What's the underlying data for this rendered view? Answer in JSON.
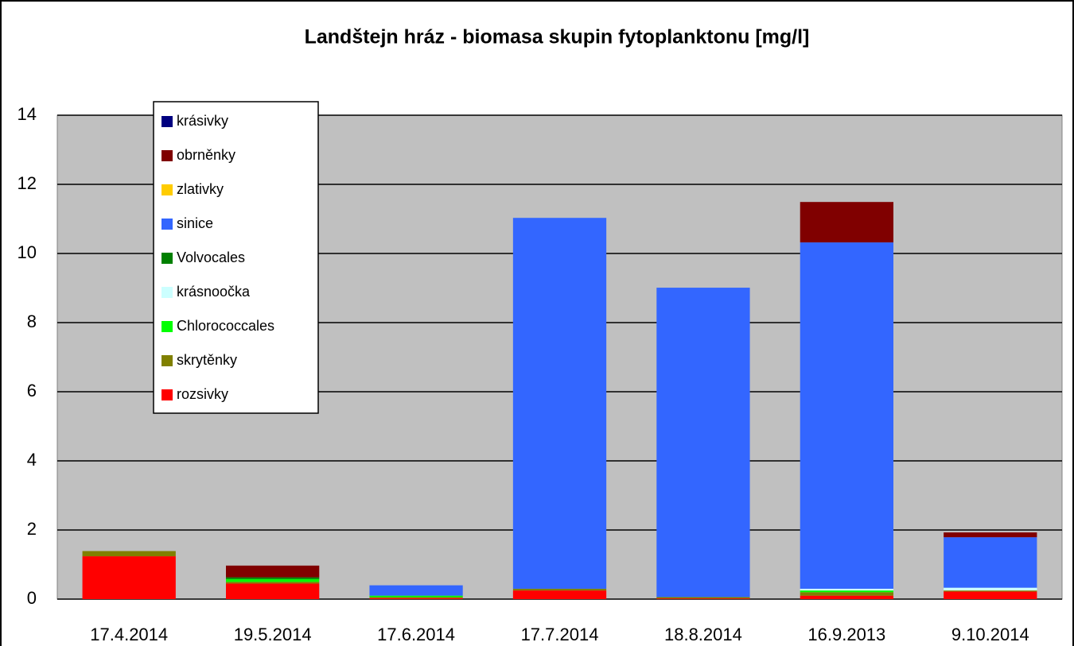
{
  "chart_data": {
    "type": "bar",
    "stacked": true,
    "title": "Landštejn hráz - biomasa skupin fytoplanktonu [mg/l]",
    "categories": [
      "17.4.2014",
      "19.5.2014",
      "17.6.2014",
      "17.7.2014",
      "18.8.2014",
      "16.9.2013",
      "9.10.2014"
    ],
    "series": [
      {
        "name": "rozsivky",
        "color": "#ff0000",
        "values": [
          1.24,
          0.45,
          0.03,
          0.25,
          0.02,
          0.1,
          0.22
        ]
      },
      {
        "name": "skrytěnky",
        "color": "#808000",
        "values": [
          0.15,
          0.05,
          0.03,
          0.05,
          0.04,
          0.1,
          0.03
        ]
      },
      {
        "name": "Chlorococcales",
        "color": "#00ff00",
        "values": [
          0,
          0.08,
          0.04,
          0,
          0,
          0.05,
          0
        ]
      },
      {
        "name": "krásnoočka",
        "color": "#ccffff",
        "values": [
          0,
          0,
          0,
          0,
          0,
          0.05,
          0.08
        ]
      },
      {
        "name": "Volvocales",
        "color": "#008000",
        "values": [
          0,
          0.05,
          0,
          0,
          0,
          0,
          0
        ]
      },
      {
        "name": "sinice",
        "color": "#3366ff",
        "values": [
          0,
          0,
          0.3,
          10.73,
          8.95,
          10.02,
          1.46
        ]
      },
      {
        "name": "zlativky",
        "color": "#ffcc00",
        "values": [
          0,
          0,
          0,
          0,
          0,
          0,
          0
        ]
      },
      {
        "name": "obrněnky",
        "color": "#800000",
        "values": [
          0,
          0.34,
          0,
          0,
          0,
          1.17,
          0.14
        ]
      },
      {
        "name": "krásivky",
        "color": "#000080",
        "values": [
          0,
          0,
          0,
          0,
          0,
          0,
          0
        ]
      }
    ],
    "ylim": [
      0,
      14
    ],
    "yticks": [
      0,
      2,
      4,
      6,
      8,
      10,
      12,
      14
    ],
    "grid": true,
    "plot_color": "#c0c0c0",
    "legend": "upper left"
  }
}
